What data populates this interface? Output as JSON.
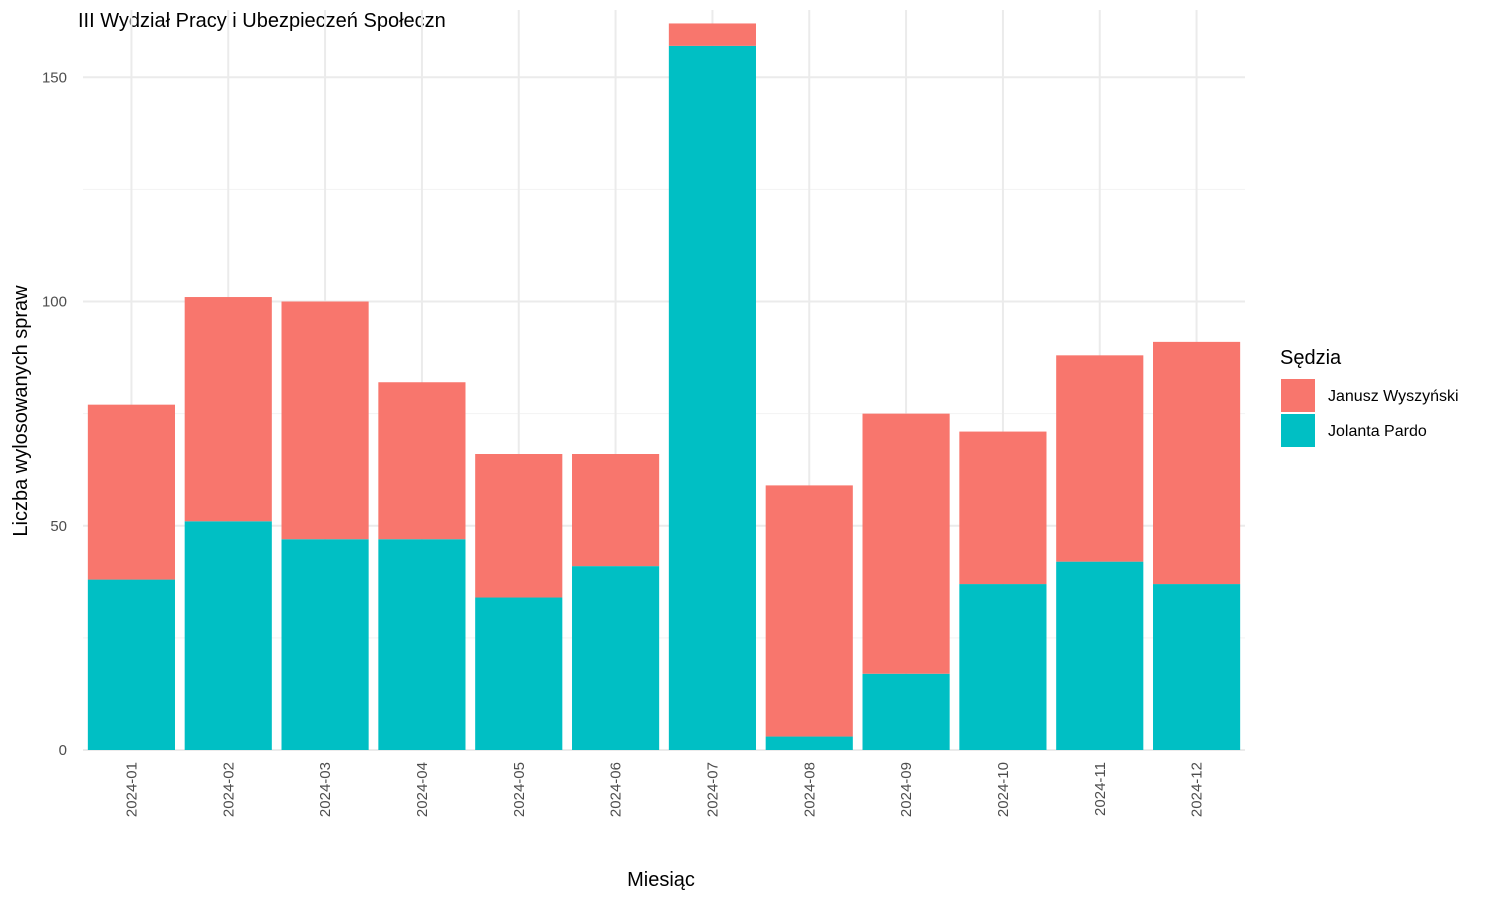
{
  "chart_data": {
    "type": "bar",
    "stacked": true,
    "title": "III Wydział Pracy i Ubezpieczeń Społeczn",
    "xlabel": "Miesiąc",
    "ylabel": "Liczba wylosowanych spraw",
    "ylim": [
      0,
      165
    ],
    "y_ticks": [
      0,
      50,
      100,
      150
    ],
    "grid": true,
    "legend": {
      "title": "Sędzia",
      "placement": "right"
    },
    "categories": [
      "2024-01",
      "2024-02",
      "2024-03",
      "2024-04",
      "2024-05",
      "2024-06",
      "2024-07",
      "2024-08",
      "2024-09",
      "2024-10",
      "2024-11",
      "2024-12"
    ],
    "series": [
      {
        "name": "Jolanta Pardo",
        "color": "#00BFC4",
        "values": [
          38,
          51,
          47,
          47,
          34,
          41,
          157,
          3,
          17,
          37,
          42,
          37
        ]
      },
      {
        "name": "Janusz Wyszyński",
        "color": "#F8766D",
        "values": [
          39,
          50,
          53,
          35,
          32,
          25,
          5,
          56,
          58,
          34,
          46,
          54
        ]
      }
    ],
    "legend_order": [
      "Janusz Wyszyński",
      "Jolanta Pardo"
    ]
  }
}
